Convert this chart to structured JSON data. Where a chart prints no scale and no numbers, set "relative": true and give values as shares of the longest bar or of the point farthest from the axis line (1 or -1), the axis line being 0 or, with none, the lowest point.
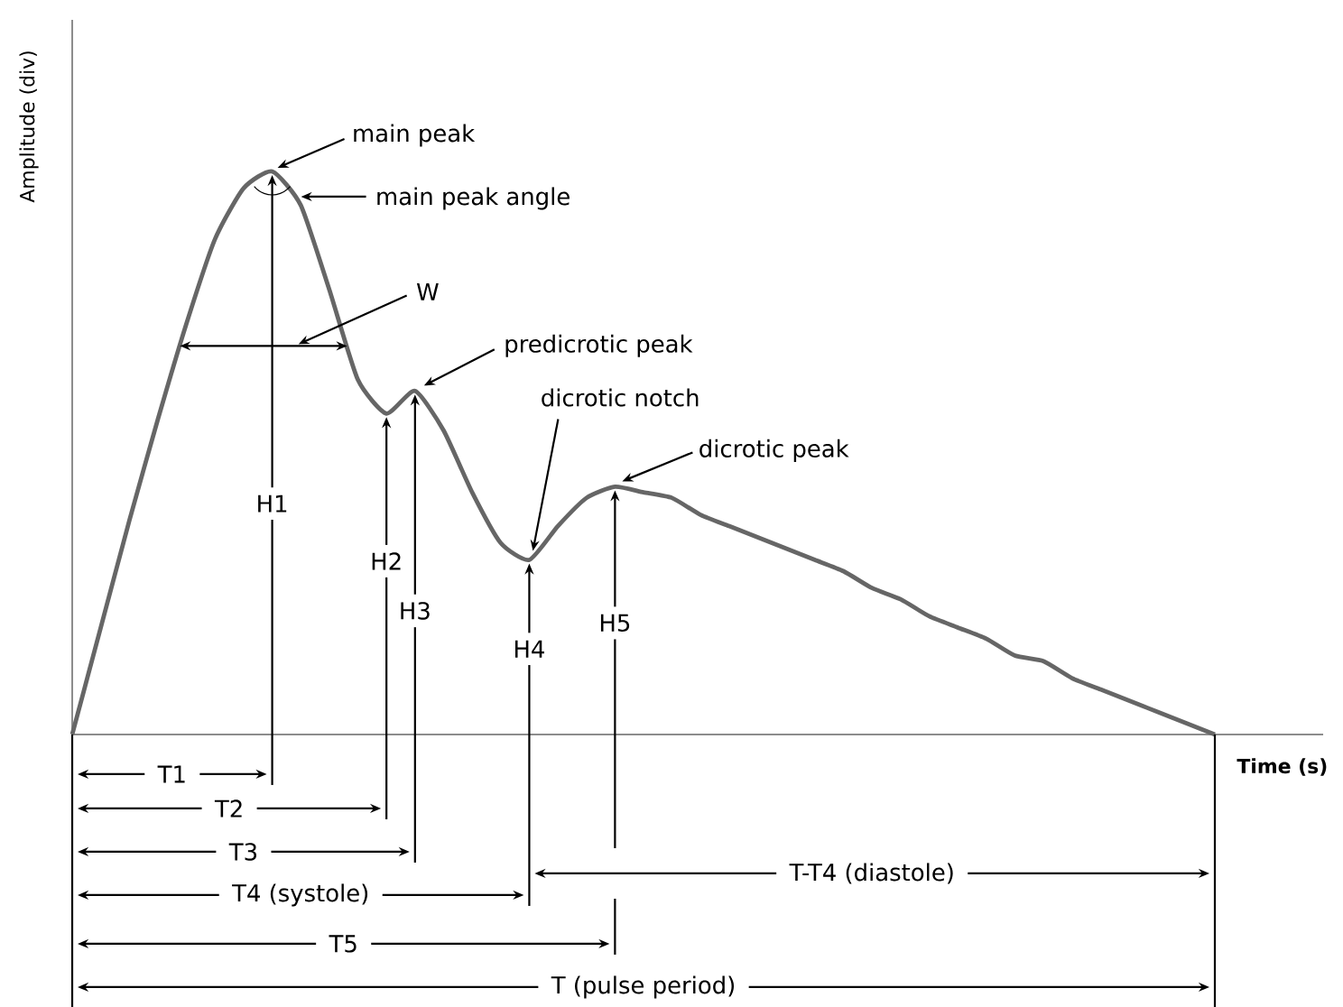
{
  "chart_data": {
    "type": "line",
    "ylabel": "Amplitude (div)",
    "xlabel": "Time (s)",
    "relative": true,
    "categories": [
      null,
      null,
      null,
      null,
      null,
      null,
      null,
      null,
      null,
      null,
      null,
      null,
      null,
      null,
      null,
      null,
      null,
      null,
      null,
      null,
      null,
      null,
      null,
      null,
      null,
      null,
      null,
      null,
      null,
      null,
      null,
      null,
      null,
      null,
      null,
      null,
      null,
      null,
      null,
      null,
      null
    ],
    "series": [
      {
        "color": "#666666",
        "values": [
          0,
          0.19,
          0.38,
          0.56,
          0.73,
          0.88,
          0.97,
          1,
          0.94,
          0.79,
          0.63,
          0.57,
          0.61,
          0.54,
          0.43,
          0.34,
          0.31,
          0.37,
          0.42,
          0.44,
          0.43,
          0.42,
          0.39,
          0.37,
          0.35,
          0.33,
          0.31,
          0.29,
          0.26,
          0.24,
          0.21,
          0.19,
          0.17,
          0.14,
          0.13,
          0.1,
          0.08,
          0.06,
          0.04,
          0.02,
          0
        ]
      }
    ],
    "annotations": [
      "main peak",
      "main peak angle",
      "W",
      "predicrotic peak",
      "dicrotic notch",
      "dicrotic peak",
      "H1",
      "H2",
      "H3",
      "H4",
      "H5",
      "T1",
      "T2",
      "T3",
      "T4 (systole)",
      "T5",
      "T-T4 (diastole)",
      "T (pulse period)"
    ]
  }
}
